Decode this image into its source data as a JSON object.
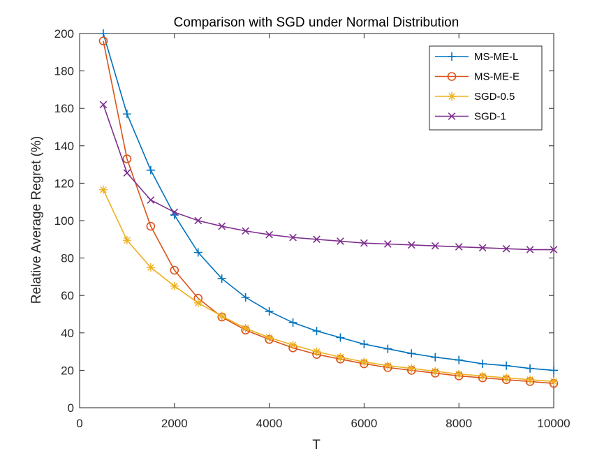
{
  "chart_data": {
    "type": "line",
    "title": "Comparison with SGD under Normal Distribution",
    "xlabel": "T",
    "ylabel": "Relative Average Regret (%)",
    "xlim": [
      0,
      10000
    ],
    "ylim": [
      0,
      200
    ],
    "xticks": [
      0,
      2000,
      4000,
      6000,
      8000,
      10000
    ],
    "yticks": [
      0,
      20,
      40,
      60,
      80,
      100,
      120,
      140,
      160,
      180,
      200
    ],
    "grid": false,
    "legend_position": "top-right",
    "x": [
      500,
      1000,
      1500,
      2000,
      2500,
      3000,
      3500,
      4000,
      4500,
      5000,
      5500,
      6000,
      6500,
      7000,
      7500,
      8000,
      8500,
      9000,
      9500,
      10000
    ],
    "series": [
      {
        "name": "MS-ME-L",
        "color": "#0072BD",
        "marker": "plus",
        "values": [
          200,
          157,
          127,
          103,
          83,
          69,
          59,
          51.5,
          45.5,
          41,
          37.5,
          34,
          31.5,
          29,
          27,
          25.5,
          23.5,
          22.5,
          21,
          20
        ]
      },
      {
        "name": "MS-ME-E",
        "color": "#D95319",
        "marker": "circle",
        "values": [
          196,
          133,
          97,
          73.5,
          58.5,
          48.5,
          41.5,
          36.5,
          32,
          28.5,
          26,
          23.5,
          21.5,
          20,
          18.5,
          17,
          16,
          15,
          14,
          13
        ]
      },
      {
        "name": "SGD-0.5",
        "color": "#EDB120",
        "marker": "asterisk",
        "values": [
          116.5,
          89.5,
          75,
          65,
          56,
          49,
          42.5,
          37.5,
          33.5,
          30,
          27,
          24.5,
          22.5,
          21,
          19.5,
          18,
          17,
          16,
          15,
          14
        ]
      },
      {
        "name": "SGD-1",
        "color": "#7E2F8E",
        "marker": "x",
        "values": [
          162,
          125.5,
          111,
          104.5,
          100,
          97,
          94.5,
          92.5,
          91,
          90,
          89,
          88,
          87.5,
          87,
          86.5,
          86,
          85.5,
          85,
          84.5,
          84.5
        ]
      }
    ]
  }
}
